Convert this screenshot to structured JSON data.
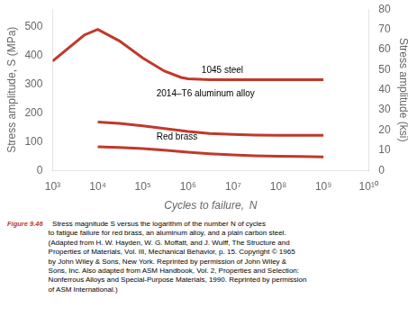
{
  "chart_data": {
    "type": "line",
    "x_label": "Cycles to failure,  N",
    "y_label": "Stress amplitude, S (MPa)",
    "y2_label": "Stress amplitude (ksi)",
    "log": "x",
    "grid": false,
    "xlim": [
      1000,
      10000000000
    ],
    "xticks": [
      {
        "value": 1000,
        "label": "10³"
      },
      {
        "value": 10000,
        "label": "10⁴"
      },
      {
        "value": 100000,
        "label": "10⁵"
      },
      {
        "value": 1000000,
        "label": "10⁶"
      },
      {
        "value": 10000000,
        "label": "10⁷"
      },
      {
        "value": 100000000,
        "label": "10⁸"
      },
      {
        "value": 1000000000,
        "label": "10⁹"
      },
      {
        "value": 10000000000,
        "label": "10¹⁰"
      }
    ],
    "ylim": [
      0,
      560
    ],
    "yticks": [
      0,
      100,
      200,
      300,
      400,
      500
    ],
    "y2lim": [
      0,
      80
    ],
    "y2ticks": [
      0,
      10,
      20,
      30,
      40,
      50,
      60,
      70,
      80
    ],
    "series": [
      {
        "color": "#c0392b",
        "x": [
          1000.0,
          5000.0,
          10000.0,
          30000.0,
          100000.0,
          300000.0,
          700000.0,
          1000000.0,
          3000000.0,
          10000000.0,
          30000000.0,
          100000000.0,
          300000000.0,
          1000000000.0
        ],
        "values": [
          380,
          470,
          490,
          450,
          390,
          345,
          323,
          318,
          315,
          315,
          315,
          315,
          315,
          315
        ]
      },
      {
        "color": "#c0392b",
        "x": [
          10000.0,
          30000.0,
          100000.0,
          300000.0,
          1000000.0,
          3000000.0,
          10000000.0,
          30000000.0,
          100000000.0,
          300000000.0,
          1000000000.0
        ],
        "values": [
          168,
          163,
          155,
          145,
          135,
          128,
          125,
          123,
          122,
          122,
          122
        ]
      },
      {
        "color": "#c0392b",
        "x": [
          10000.0,
          30000.0,
          100000.0,
          300000.0,
          1000000.0,
          3000000.0,
          10000000.0,
          30000000.0,
          100000000.0,
          300000000.0,
          1000000000.0
        ],
        "values": [
          82,
          80,
          76,
          70,
          63,
          58,
          54,
          51,
          49,
          48,
          47
        ]
      }
    ],
    "annotations": [
      {
        "text": "1045 steel",
        "x": 2000000.0,
        "y": 330
      },
      {
        "text": "2014–T6 aluminum alloy",
        "x": 200000.0,
        "y": 250
      },
      {
        "text": "Red brass",
        "x": 200000.0,
        "y": 99
      }
    ],
    "caption": {
      "label": "Figure 9.46",
      "color": "#c0392b",
      "lines": [
        "  Stress magnitude S versus the logarithm of the number N of cycles",
        "to fatigue failure for red brass, an aluminum alloy, and a plain carbon steel.",
        "(Adapted from H. W. Hayden, W. G. Moffatt, and J. Wulff, The Structure and",
        "Properties of Materials, Vol. III, Mechanical Behavior, p. 15. Copyright © 1965",
        "by John Wiley & Sons, New York. Reprinted by permission of John Wiley &",
        "Sons, Inc. Also adapted from ASM Handbook, Vol. 2, Properties and Selection:",
        "Nonferrous Alloys and Special-Purpose Materials, 1990. Reprinted by permission",
        "of ASM International.)"
      ]
    }
  }
}
